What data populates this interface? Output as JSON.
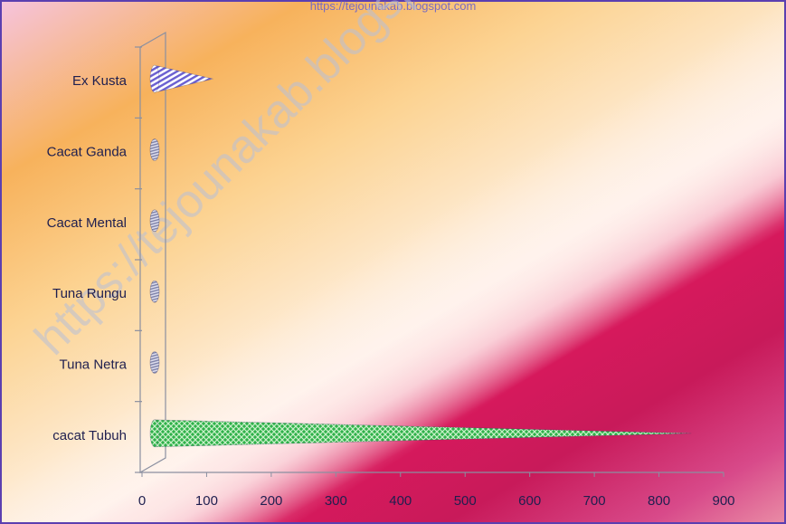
{
  "page": {
    "watermark_url": "https://tejounakab.blogspot.com"
  },
  "chart_data": {
    "type": "bar",
    "orientation": "horizontal",
    "style": "3d-cone",
    "title": "",
    "xlabel": "",
    "ylabel": "",
    "categories": [
      "cacat Tubuh",
      "Tuna Netra",
      "Tuna Rungu",
      "Cacat Mental",
      "Cacat Ganda",
      "Ex Kusta"
    ],
    "values": [
      850,
      2,
      2,
      3,
      2,
      110
    ],
    "xlim": [
      0,
      900
    ],
    "xticks": [
      0,
      100,
      200,
      300,
      400,
      500,
      600,
      700,
      800,
      900
    ],
    "grid": false,
    "legend": "none",
    "colors": {
      "cacat Tubuh": "#33b84a",
      "Ex Kusta": "#6a5fd0",
      "small": "#8f93b8",
      "axis": "#8a8fa0",
      "text": "#1f1f4f",
      "border": "#5b3fb0"
    }
  }
}
